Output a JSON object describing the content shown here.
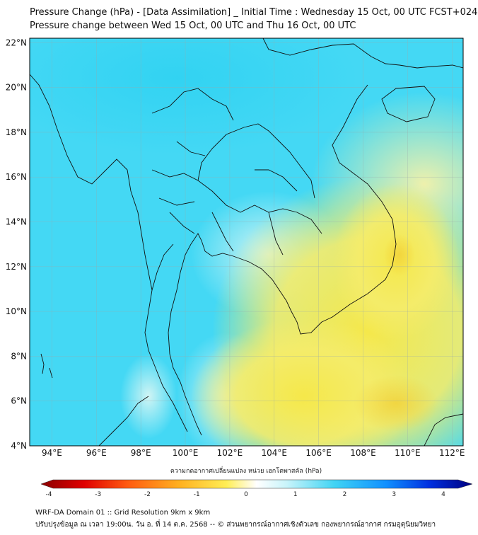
{
  "title_line1": "Pressure Change (hPa) - [Data Assimilation] _ Initial Time : Wednesday 15 Oct, 00 UTC FCST+024",
  "title_line2": "Pressure change between Wed 15 Oct, 00 UTC and Thu 16 Oct, 00 UTC",
  "map": {
    "lon_range": [
      93,
      112.5
    ],
    "lat_range": [
      4,
      22.2
    ],
    "lon_ticks": [
      "94°E",
      "96°E",
      "98°E",
      "100°E",
      "102°E",
      "104°E",
      "106°E",
      "108°E",
      "110°E",
      "112°E"
    ],
    "lat_ticks": [
      "4°N",
      "6°N",
      "8°N",
      "10°N",
      "12°N",
      "14°N",
      "16°N",
      "18°N",
      "20°N",
      "22°N"
    ],
    "grid": true,
    "cool_color": "#3fd6f2",
    "warm_color": "#f2ee5e"
  },
  "colorbar": {
    "label": "ความกดอากาศเปลี่ยนแปลง หน่วย เฮกโตพาสคัล (hPa)",
    "min": -4,
    "max": 4,
    "tick_labels": [
      "-4",
      "-3",
      "-2",
      "-1",
      "0",
      "1",
      "2",
      "3",
      "4"
    ],
    "low_color": "#7a0000",
    "high_color": "#000080"
  },
  "footer_line1": "WRF-DA Domain 01 :: Grid Resolution 9km x 9km",
  "footer_line2": "ปรับปรุงข้อมูล ณ เวลา 19:00น. วัน อ. ที่ 14 ต.ค. 2568 -- © ส่วนพยากรณ์อากาศเชิงตัวเลข กองพยากรณ์อากาศ กรมอุตุนิยมวิทยา"
}
